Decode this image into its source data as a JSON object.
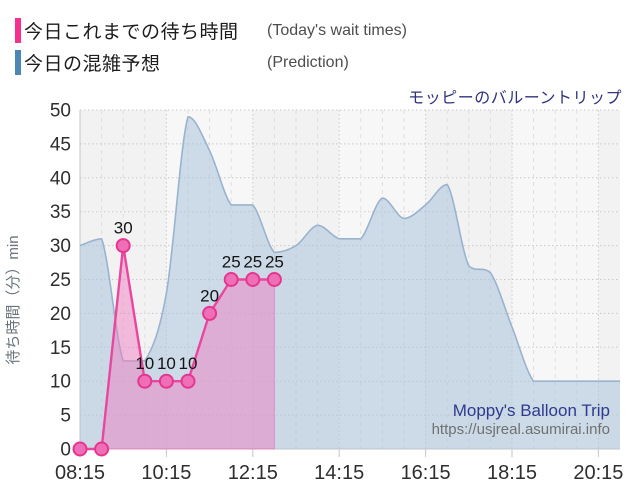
{
  "legend": {
    "series": [
      {
        "label": "今日これまでの待ち時間",
        "label_en": "(Today's wait times)",
        "color": "#f7308f"
      },
      {
        "label": "今日の混雑予想",
        "label_en": "(Prediction)",
        "color": "#4c86b4"
      }
    ]
  },
  "title": "モッピーのバルーントリップ",
  "watermark": {
    "line1": "Moppy's Balloon Trip",
    "line2": "https://usjreal.asumirai.info"
  },
  "chart_data": {
    "type": "area",
    "title": "モッピーのバルーントリップ",
    "x_axis": {
      "start": "08:15",
      "end": "20:45",
      "major_tick_labels": [
        "08:15",
        "10:15",
        "12:15",
        "14:15",
        "16:15",
        "18:15",
        "20:15"
      ],
      "minor_interval_minutes": 30
    },
    "y_axis": {
      "title": "待ち時間（分）min",
      "min": 0,
      "max": 50,
      "tick_step": 5,
      "tick_labels": [
        "0",
        "5",
        "10",
        "15",
        "20",
        "25",
        "30",
        "35",
        "40",
        "45",
        "50"
      ]
    },
    "grid": true,
    "legend_position": "top-left",
    "series": [
      {
        "name": "今日の混雑予想",
        "name_en": "(Prediction)",
        "type": "area",
        "smooth": true,
        "marker": false,
        "line_color": "#9ab3cd",
        "fill_color": "rgba(171,196,219,0.55)",
        "x": [
          "08:15",
          "08:45",
          "09:15",
          "09:45",
          "10:15",
          "10:45",
          "11:15",
          "11:45",
          "12:15",
          "12:45",
          "13:15",
          "13:45",
          "14:15",
          "14:45",
          "15:15",
          "15:45",
          "16:15",
          "16:45",
          "17:15",
          "17:45",
          "18:15",
          "18:45",
          "19:15",
          "19:45",
          "20:15",
          "20:45"
        ],
        "values": [
          30,
          31,
          13,
          13,
          23,
          49,
          44,
          36,
          36,
          29,
          30,
          33,
          31,
          31,
          37,
          34,
          36,
          39,
          27,
          26,
          18,
          10,
          10,
          10,
          10,
          10
        ]
      },
      {
        "name": "今日これまでの待ち時間",
        "name_en": "(Today's wait times)",
        "type": "line+area",
        "smooth": false,
        "marker": true,
        "line_color": "#e9479e",
        "fill_color": "rgba(240,128,194,0.5)",
        "fill_stroke": "rgba(233,78,161,0.4)",
        "marker_fill": "#ef6fb7",
        "marker_stroke": "#e5368f",
        "x": [
          "08:15",
          "08:45",
          "09:15",
          "09:45",
          "10:15",
          "10:45",
          "11:15",
          "11:45",
          "12:15",
          "12:45"
        ],
        "values": [
          0,
          0,
          30,
          10,
          10,
          10,
          20,
          25,
          25,
          25
        ],
        "point_labels": [
          "",
          "",
          "30",
          "10",
          "10",
          "10",
          "20",
          "25",
          "25",
          "25"
        ]
      }
    ],
    "style": {
      "plot_bg_even": "#f2f2f3",
      "plot_bg_odd": "#f7f7f8",
      "h_grid_color": "#c9c9c9",
      "v_major_grid_color": "#c9c9c9",
      "v_minor_grid_color": "#dedee0",
      "axis_color": "#c6c6c6",
      "tick_label_color": "#2e2e2e",
      "data_label_color": "#141414",
      "y_title_color": "#68727a"
    }
  }
}
